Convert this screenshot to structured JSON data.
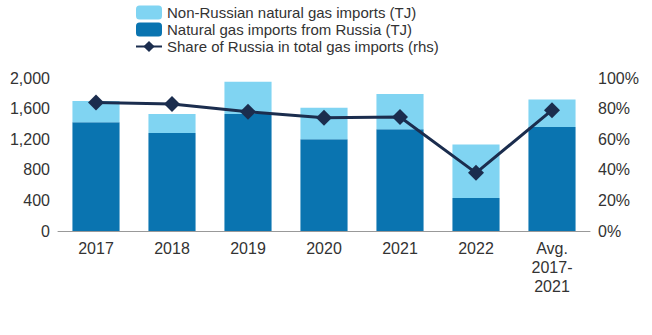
{
  "chart_data": {
    "type": "bar",
    "stacked": true,
    "grid": false,
    "legend": "top",
    "categories": [
      "2017",
      "2018",
      "2019",
      "2020",
      "2021",
      "2022",
      "Avg.\n2017-\n2021"
    ],
    "series": [
      {
        "name": "Non-Russian natural gas imports (TJ)",
        "type": "bar",
        "color": "#80d4f2",
        "values": [
          280,
          250,
          420,
          410,
          460,
          700,
          360
        ]
      },
      {
        "name": "Natural gas imports from Russia (TJ)",
        "type": "bar",
        "color": "#0a74b0",
        "values": [
          1420,
          1280,
          1530,
          1200,
          1330,
          430,
          1360
        ]
      },
      {
        "name": "Share of Russia in total gas imports (rhs)",
        "type": "line",
        "axis": "y2",
        "color": "#1b2d4e",
        "marker": "diamond",
        "line_style": "solid",
        "values": [
          84,
          83,
          78,
          74,
          74.5,
          38,
          79
        ]
      }
    ],
    "ylim": [
      0,
      2000
    ],
    "yticks": [
      0,
      400,
      800,
      {
        "value": 1200,
        "label": "1,200"
      },
      {
        "value": 1600,
        "label": "1,600"
      },
      {
        "value": 2000,
        "label": "2,000"
      }
    ],
    "y2lim": [
      0,
      100
    ],
    "y2ticks": [
      {
        "value": 0,
        "label": "0%"
      },
      {
        "value": 20,
        "label": "20%"
      },
      {
        "value": 40,
        "label": "40%"
      },
      {
        "value": 60,
        "label": "60%"
      },
      {
        "value": 80,
        "label": "80%"
      },
      {
        "value": 100,
        "label": "100%"
      }
    ]
  }
}
